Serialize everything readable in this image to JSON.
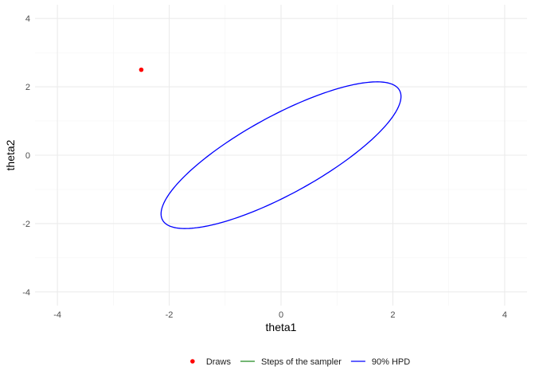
{
  "chart_data": {
    "type": "scatter",
    "xlabel": "theta1",
    "ylabel": "theta2",
    "xlim": [
      -4.4,
      4.4
    ],
    "ylim": [
      -4.4,
      4.4
    ],
    "major_breaks": [
      -4,
      -2,
      0,
      2,
      4
    ],
    "minor_breaks": [
      -3,
      -1,
      1,
      3
    ],
    "x_tick_labels": [
      "-4",
      "-2",
      "0",
      "2",
      "4"
    ],
    "y_tick_labels": [
      "-4",
      "-2",
      "0",
      "2",
      "4"
    ],
    "grid": true,
    "legend_position": "bottom",
    "series": [
      {
        "name": "Draws",
        "kind": "points",
        "color": "#ff0000",
        "points": [
          {
            "x": -2.5,
            "y": 2.5
          }
        ]
      },
      {
        "name": "Steps of the sampler",
        "kind": "path",
        "color": "#228b22",
        "points": []
      },
      {
        "name": "90% HPD",
        "kind": "ellipse",
        "color": "#0000ff",
        "center": [
          0,
          0
        ],
        "covariance": [
          [
            1,
            0.8
          ],
          [
            0.8,
            1
          ]
        ],
        "chi2_level": 4.605
      }
    ]
  }
}
